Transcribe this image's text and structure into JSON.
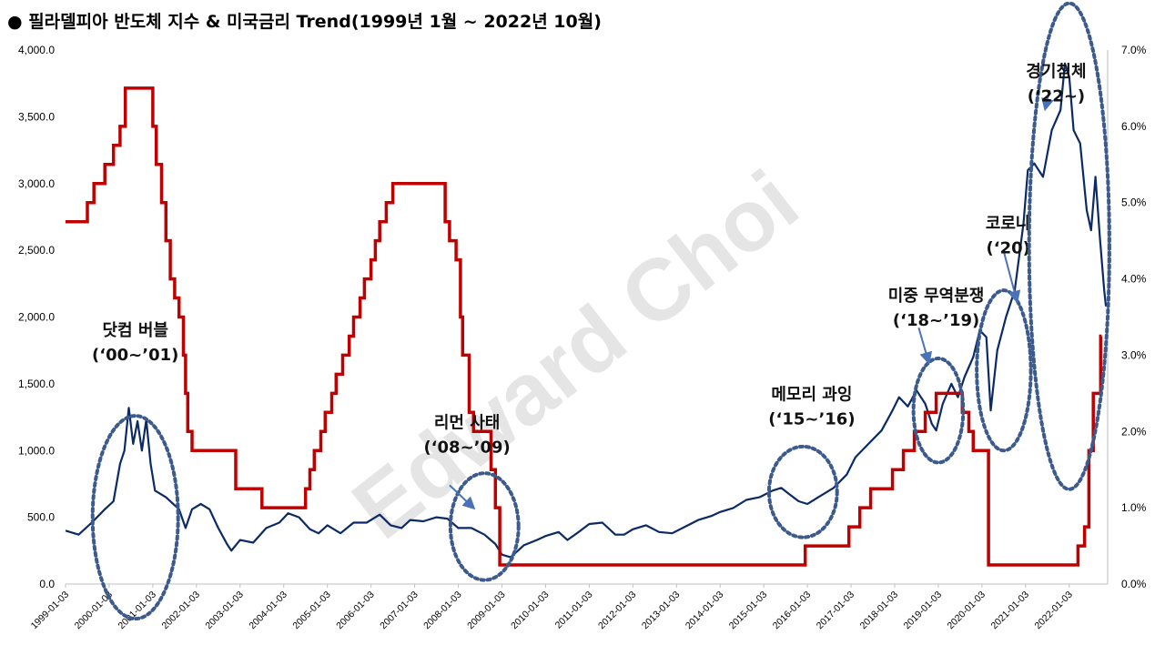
{
  "chart_data": {
    "type": "line",
    "title": "● 필라델피아 반도체 지수 & 미국금리 Trend(1999년 1월 ~ 2022년 10월)",
    "watermark": "Edward Choi",
    "x_tick_labels": [
      "1999-01-03",
      "2000-01-03",
      "2001-01-03",
      "2002-01-03",
      "2003-01-03",
      "2004-01-03",
      "2005-01-03",
      "2006-01-03",
      "2007-01-03",
      "2008-01-03",
      "2009-01-03",
      "2010-01-03",
      "2011-01-03",
      "2012-01-03",
      "2013-01-03",
      "2014-01-03",
      "2015-01-03",
      "2016-01-03",
      "2017-01-03",
      "2018-01-03",
      "2019-01-03",
      "2020-01-03",
      "2021-01-03",
      "2022-01-03"
    ],
    "y_left": {
      "ylim": [
        0,
        4000
      ],
      "ticks": [
        "0.0",
        "500.0",
        "1,000.0",
        "1,500.0",
        "2,000.0",
        "2,500.0",
        "3,000.0",
        "3,500.0",
        "4,000.0"
      ]
    },
    "y_right": {
      "ylim": [
        0,
        7
      ],
      "ticks": [
        "0.0%",
        "1.0%",
        "2.0%",
        "3.0%",
        "4.0%",
        "5.0%",
        "6.0%",
        "7.0%"
      ]
    },
    "grid": false,
    "series": [
      {
        "name": "",
        "axis": "left",
        "color": "#0b2a66",
        "points": [
          [
            1999.0,
            400
          ],
          [
            1999.3,
            370
          ],
          [
            1999.6,
            460
          ],
          [
            1999.9,
            560
          ],
          [
            2000.1,
            620
          ],
          [
            2000.25,
            900
          ],
          [
            2000.35,
            1000
          ],
          [
            2000.45,
            1320
          ],
          [
            2000.55,
            1050
          ],
          [
            2000.65,
            1220
          ],
          [
            2000.75,
            1000
          ],
          [
            2000.85,
            1230
          ],
          [
            2000.95,
            900
          ],
          [
            2001.05,
            700
          ],
          [
            2001.3,
            650
          ],
          [
            2001.6,
            560
          ],
          [
            2001.75,
            420
          ],
          [
            2001.9,
            560
          ],
          [
            2002.1,
            600
          ],
          [
            2002.3,
            560
          ],
          [
            2002.5,
            420
          ],
          [
            2002.7,
            300
          ],
          [
            2002.8,
            250
          ],
          [
            2003.0,
            330
          ],
          [
            2003.3,
            310
          ],
          [
            2003.6,
            420
          ],
          [
            2003.9,
            460
          ],
          [
            2004.1,
            530
          ],
          [
            2004.35,
            500
          ],
          [
            2004.6,
            410
          ],
          [
            2004.8,
            380
          ],
          [
            2005.0,
            440
          ],
          [
            2005.3,
            380
          ],
          [
            2005.6,
            460
          ],
          [
            2005.9,
            460
          ],
          [
            2006.2,
            520
          ],
          [
            2006.45,
            440
          ],
          [
            2006.7,
            420
          ],
          [
            2006.9,
            480
          ],
          [
            2007.2,
            470
          ],
          [
            2007.5,
            500
          ],
          [
            2007.75,
            490
          ],
          [
            2008.0,
            420
          ],
          [
            2008.3,
            420
          ],
          [
            2008.6,
            370
          ],
          [
            2008.85,
            300
          ],
          [
            2009.0,
            220
          ],
          [
            2009.2,
            200
          ],
          [
            2009.5,
            290
          ],
          [
            2009.8,
            330
          ],
          [
            2010.0,
            360
          ],
          [
            2010.3,
            390
          ],
          [
            2010.5,
            330
          ],
          [
            2010.8,
            400
          ],
          [
            2011.0,
            450
          ],
          [
            2011.3,
            460
          ],
          [
            2011.6,
            370
          ],
          [
            2011.8,
            370
          ],
          [
            2012.0,
            410
          ],
          [
            2012.3,
            440
          ],
          [
            2012.6,
            390
          ],
          [
            2012.9,
            380
          ],
          [
            2013.2,
            430
          ],
          [
            2013.5,
            480
          ],
          [
            2013.8,
            510
          ],
          [
            2014.0,
            540
          ],
          [
            2014.3,
            570
          ],
          [
            2014.6,
            630
          ],
          [
            2014.9,
            650
          ],
          [
            2015.2,
            700
          ],
          [
            2015.4,
            720
          ],
          [
            2015.6,
            670
          ],
          [
            2015.8,
            620
          ],
          [
            2016.0,
            600
          ],
          [
            2016.3,
            660
          ],
          [
            2016.6,
            720
          ],
          [
            2016.9,
            820
          ],
          [
            2017.1,
            950
          ],
          [
            2017.4,
            1050
          ],
          [
            2017.7,
            1150
          ],
          [
            2017.95,
            1300
          ],
          [
            2018.1,
            1400
          ],
          [
            2018.3,
            1330
          ],
          [
            2018.5,
            1450
          ],
          [
            2018.7,
            1350
          ],
          [
            2018.85,
            1200
          ],
          [
            2018.95,
            1150
          ],
          [
            2019.1,
            1350
          ],
          [
            2019.3,
            1500
          ],
          [
            2019.45,
            1400
          ],
          [
            2019.6,
            1550
          ],
          [
            2019.8,
            1700
          ],
          [
            2019.95,
            1900
          ],
          [
            2020.1,
            1850
          ],
          [
            2020.2,
            1300
          ],
          [
            2020.35,
            1750
          ],
          [
            2020.55,
            2000
          ],
          [
            2020.75,
            2200
          ],
          [
            2020.95,
            2700
          ],
          [
            2021.05,
            3100
          ],
          [
            2021.2,
            3150
          ],
          [
            2021.4,
            3050
          ],
          [
            2021.6,
            3400
          ],
          [
            2021.8,
            3550
          ],
          [
            2021.9,
            3900
          ],
          [
            2022.0,
            3800
          ],
          [
            2022.1,
            3400
          ],
          [
            2022.25,
            3300
          ],
          [
            2022.4,
            2800
          ],
          [
            2022.5,
            2650
          ],
          [
            2022.6,
            3050
          ],
          [
            2022.7,
            2600
          ],
          [
            2022.8,
            2200
          ],
          [
            2022.84,
            2080
          ]
        ]
      },
      {
        "name": "",
        "axis": "right",
        "color": "#c00000",
        "points": [
          [
            1999.0,
            4.75
          ],
          [
            1999.5,
            5.0
          ],
          [
            1999.65,
            5.25
          ],
          [
            1999.9,
            5.5
          ],
          [
            2000.1,
            5.75
          ],
          [
            2000.25,
            6.0
          ],
          [
            2000.37,
            6.5
          ],
          [
            2000.9,
            6.5
          ],
          [
            2001.0,
            6.0
          ],
          [
            2001.08,
            5.5
          ],
          [
            2001.2,
            5.0
          ],
          [
            2001.3,
            4.5
          ],
          [
            2001.4,
            4.0
          ],
          [
            2001.5,
            3.75
          ],
          [
            2001.6,
            3.5
          ],
          [
            2001.7,
            3.0
          ],
          [
            2001.75,
            2.5
          ],
          [
            2001.8,
            2.0
          ],
          [
            2001.9,
            1.75
          ],
          [
            2002.9,
            1.25
          ],
          [
            2003.5,
            1.0
          ],
          [
            2004.5,
            1.25
          ],
          [
            2004.6,
            1.5
          ],
          [
            2004.7,
            1.75
          ],
          [
            2004.85,
            2.0
          ],
          [
            2004.95,
            2.25
          ],
          [
            2005.1,
            2.5
          ],
          [
            2005.2,
            2.75
          ],
          [
            2005.35,
            3.0
          ],
          [
            2005.5,
            3.25
          ],
          [
            2005.6,
            3.5
          ],
          [
            2005.75,
            3.75
          ],
          [
            2005.85,
            4.0
          ],
          [
            2006.0,
            4.25
          ],
          [
            2006.1,
            4.5
          ],
          [
            2006.2,
            4.75
          ],
          [
            2006.35,
            5.0
          ],
          [
            2006.5,
            5.25
          ],
          [
            2007.7,
            4.75
          ],
          [
            2007.8,
            4.5
          ],
          [
            2007.95,
            4.25
          ],
          [
            2008.05,
            3.5
          ],
          [
            2008.1,
            3.0
          ],
          [
            2008.25,
            2.25
          ],
          [
            2008.35,
            2.0
          ],
          [
            2008.75,
            1.5
          ],
          [
            2008.85,
            1.0
          ],
          [
            2008.95,
            0.25
          ],
          [
            2015.95,
            0.5
          ],
          [
            2016.95,
            0.75
          ],
          [
            2017.2,
            1.0
          ],
          [
            2017.45,
            1.25
          ],
          [
            2017.95,
            1.5
          ],
          [
            2018.2,
            1.75
          ],
          [
            2018.45,
            2.0
          ],
          [
            2018.7,
            2.25
          ],
          [
            2018.95,
            2.5
          ],
          [
            2019.55,
            2.25
          ],
          [
            2019.7,
            2.0
          ],
          [
            2019.8,
            1.75
          ],
          [
            2020.15,
            0.25
          ],
          [
            2022.2,
            0.5
          ],
          [
            2022.35,
            0.75
          ],
          [
            2022.45,
            1.75
          ],
          [
            2022.55,
            2.5
          ],
          [
            2022.72,
            3.25
          ]
        ]
      }
    ],
    "annotations": [
      {
        "lines": [
          "닷컴 버블",
          "(‘00~’01)"
        ],
        "x": 2000.6,
        "y_left": 1860,
        "ellipse": {
          "cx": 2000.6,
          "cy": 500,
          "rx": 0.98,
          "ry": 760
        },
        "arrow": false
      },
      {
        "lines": [
          "리먼 사태",
          "(‘08~’09)"
        ],
        "x": 2008.2,
        "y_left": 1170,
        "ellipse": {
          "cx": 2008.6,
          "cy": 430,
          "rx": 0.78,
          "ry": 400
        },
        "arrow": true,
        "arrow_from": [
          2007.8,
          740
        ],
        "arrow_to": [
          2008.35,
          570
        ]
      },
      {
        "lines": [
          "메모리 과잉",
          "(‘15~’16)"
        ],
        "x": 2016.1,
        "y_left": 1380,
        "ellipse": {
          "cx": 2015.9,
          "cy": 690,
          "rx": 0.78,
          "ry": 340
        },
        "arrow": false
      },
      {
        "lines": [
          "미중 무역분쟁",
          "(‘18~’19)"
        ],
        "x": 2018.95,
        "y_left": 2120,
        "ellipse": {
          "cx": 2019.0,
          "cy": 1300,
          "rx": 0.57,
          "ry": 390
        },
        "arrow": true,
        "arrow_from": [
          2018.55,
          1920
        ],
        "arrow_to": [
          2018.78,
          1660
        ]
      },
      {
        "lines": [
          "코로나",
          "(‘20)"
        ],
        "x": 2020.6,
        "y_left": 2660,
        "ellipse": {
          "cx": 2020.5,
          "cy": 1600,
          "rx": 0.62,
          "ry": 600
        },
        "arrow": true,
        "arrow_from": [
          2020.5,
          2490
        ],
        "arrow_to": [
          2020.8,
          2120
        ]
      },
      {
        "lines": [
          "경기침체",
          "(‘22~)"
        ],
        "x": 2021.7,
        "y_left": 3800,
        "ellipse": {
          "cx": 2022.0,
          "cy": 2530,
          "rx": 0.92,
          "ry": 1820
        },
        "arrow": true,
        "arrow_from": [
          2021.55,
          3700
        ],
        "arrow_to": [
          2021.45,
          3560
        ]
      }
    ]
  }
}
